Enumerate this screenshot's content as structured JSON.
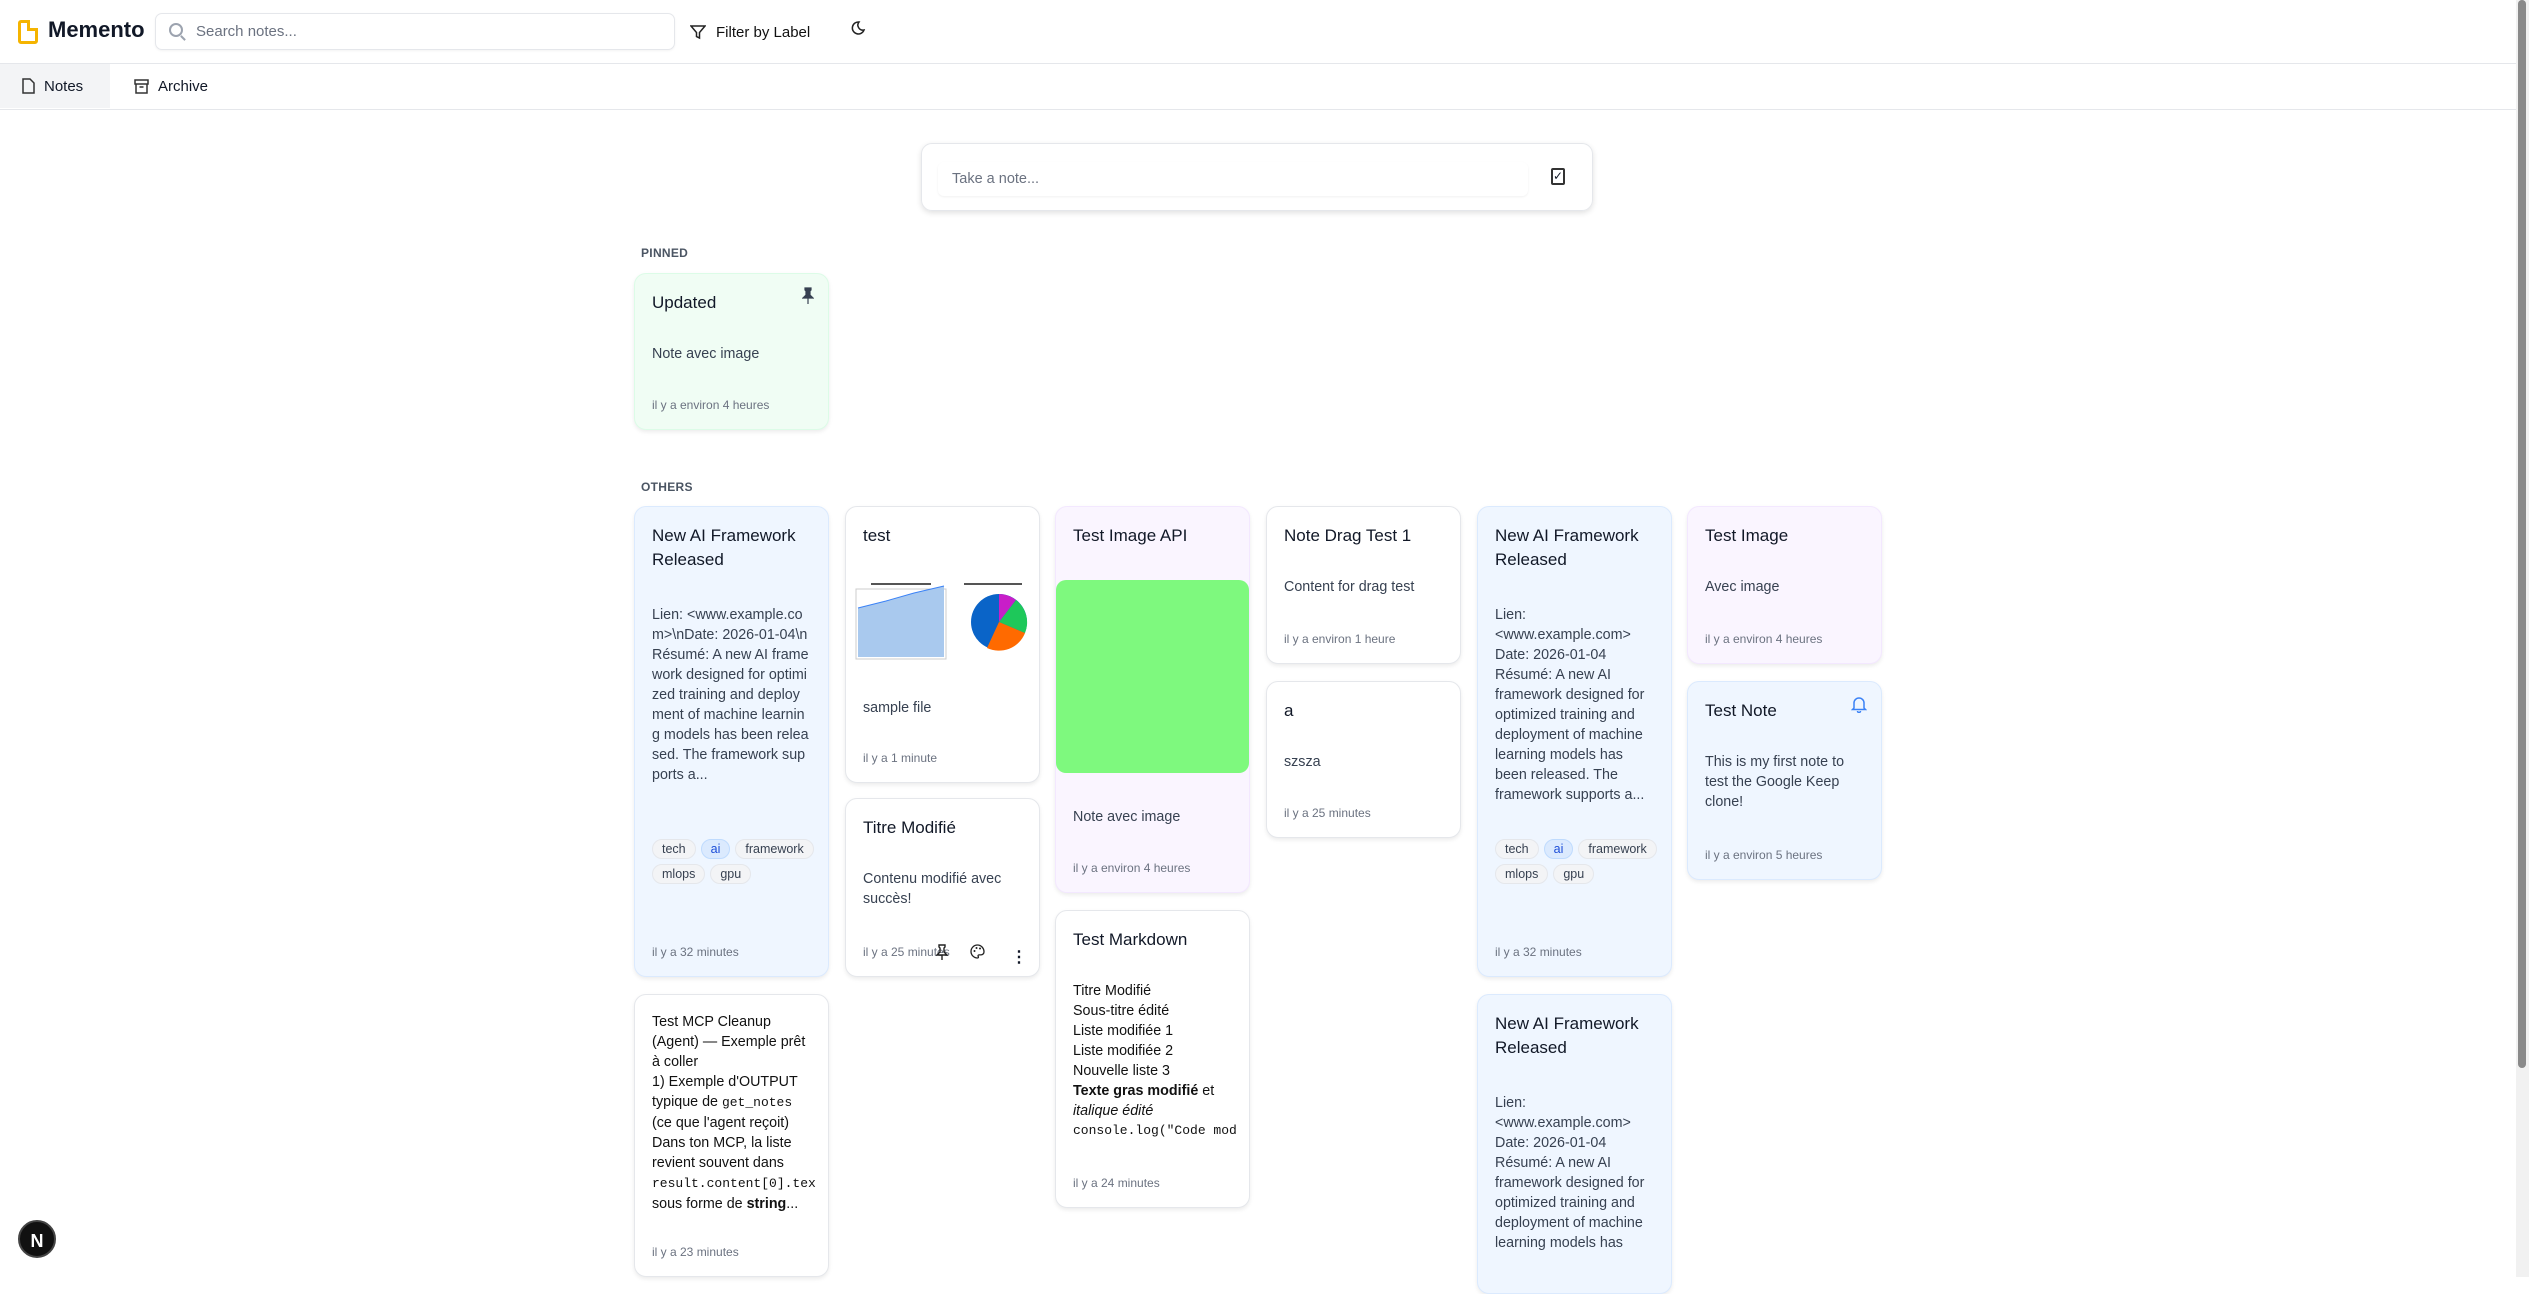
{
  "app": {
    "title": "Memento",
    "logo_icon": "note-icon",
    "logo_color": "#f5b400"
  },
  "search": {
    "placeholder": "Search notes...",
    "value": ""
  },
  "toolbar": {
    "filter_label": "Filter by Label",
    "theme_icon": "moon-icon"
  },
  "tabs": [
    {
      "label": "Notes",
      "icon": "file-icon",
      "active": true
    },
    {
      "label": "Archive",
      "icon": "archive-icon",
      "active": false
    }
  ],
  "composer": {
    "placeholder": "Take a note..."
  },
  "sections": {
    "pinned": "PINNED",
    "others": "OTHERS"
  },
  "pinned": [
    {
      "title": "Updated",
      "body": "Note avec image",
      "time": "il y a environ 4 heures",
      "color": "#f0fdf4",
      "pinned": true
    }
  ],
  "notes": [
    {
      "title": "New AI Framework Released",
      "body": "Lien: <www.example.com>\\nDate: 2026-01-04\\nRésumé: A new AI framework designed for optimized training and deployment of machine learning models has been released. The framework supports a...",
      "labels": [
        "tech",
        "ai",
        "framework",
        "mlops",
        "gpu"
      ],
      "time": "il y a 32 minutes",
      "color": "#eff6ff"
    },
    {
      "title": "test",
      "body": "sample file",
      "time": "il y a 1 minute",
      "color": "#ffffff"
    },
    {
      "title": "Test Image API",
      "body": "Note avec image",
      "time": "il y a environ 4 heures",
      "color": "#faf5ff",
      "image_color": "#7ef97e"
    },
    {
      "title": "Note Drag Test 1",
      "body": "Content for drag test",
      "time": "il y a environ 1 heure",
      "color": "#ffffff"
    },
    {
      "title": "New AI Framework Released",
      "body_lines": [
        "Lien:",
        "<www.example.com>",
        "Date: 2026-01-04",
        "Résumé: A new AI framework designed for optimized training and deployment of machine learning models has been released. The framework supports a..."
      ],
      "labels": [
        "tech",
        "ai",
        "framework",
        "mlops",
        "gpu"
      ],
      "time": "il y a 32 minutes",
      "color": "#eff6ff"
    },
    {
      "title": "Test Image",
      "body": "Avec image",
      "time": "il y a environ 4 heures",
      "color": "#faf5ff"
    },
    {
      "title": "Titre Modifié",
      "body": "Contenu modifié avec succès!",
      "time": "il y a 25 minutes",
      "color": "#ffffff"
    },
    {
      "title": "a",
      "body": "szsza",
      "time": "il y a 25 minutes",
      "color": "#ffffff"
    },
    {
      "title": "Test Note",
      "body": "This is my first note to test the Google Keep clone!",
      "time": "il y a environ 5 heures",
      "color": "#eff6ff",
      "reminder": true
    },
    {
      "title": "Test Markdown",
      "lines": [
        "Titre Modifié",
        "Sous-titre édité",
        "Liste modifiée 1",
        "Liste modifiée 2",
        "Nouvelle liste 3"
      ],
      "bold": "Texte gras modifié",
      "after_bold": " et",
      "italic": "italique édité",
      "code": "console.log(\"Code mod",
      "time": "il y a 24 minutes",
      "color": "#ffffff"
    },
    {
      "body_p1": "Test MCP Cleanup (Agent) — Exemple prêt à coller",
      "body_p2": "1) Exemple d'OUTPUT typique de ",
      "code1": "get_notes",
      "body_p3": " (ce que l'agent reçoit) Dans ton MCP, la liste revient souvent dans ",
      "code2": "result.content[0].tex",
      "body_p4": " sous forme de ",
      "bold": "string",
      "ellipsis": "...",
      "time": "il y a 23 minutes",
      "color": "#ffffff"
    },
    {
      "title": "New AI Framework Released",
      "body_lines": [
        "Lien:",
        "<www.example.com>",
        "Date: 2026-01-04",
        "Résumé: A new AI framework designed for optimized training and deployment of machine learning models has"
      ],
      "color": "#eff6ff"
    }
  ],
  "badge": {
    "label": "N"
  }
}
